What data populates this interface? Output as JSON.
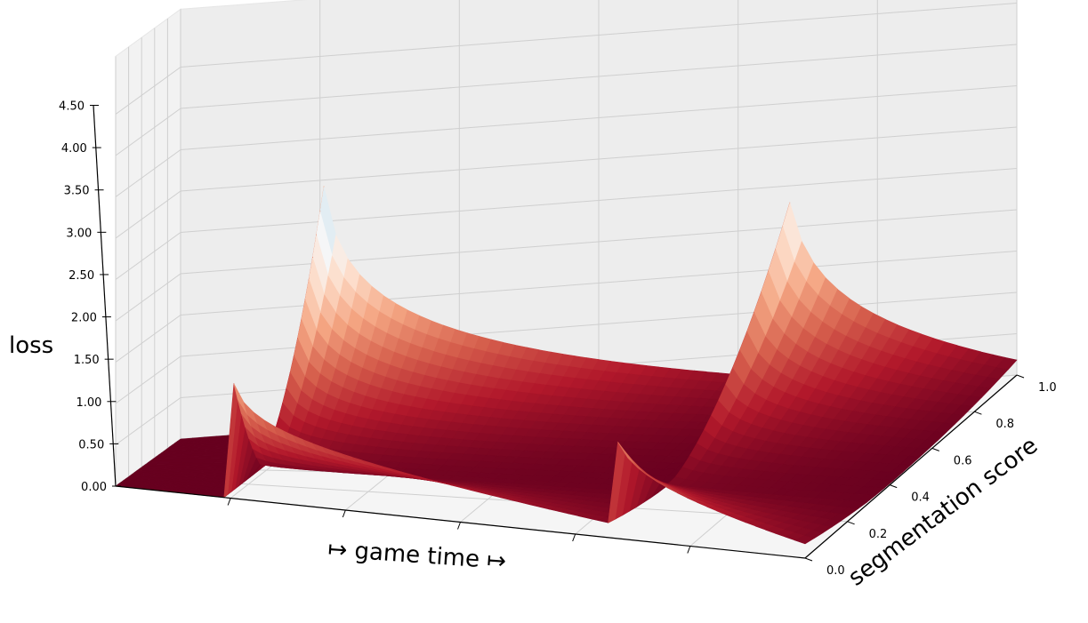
{
  "chart_data": {
    "type": "surface3d",
    "zlabel": "loss",
    "xlabel": "↦ game time ↦",
    "ylabel": "segmentation score",
    "z_ticks": [
      "0.00",
      "0.50",
      "1.00",
      "1.50",
      "2.00",
      "2.50",
      "3.00",
      "3.50",
      "4.00",
      "4.50"
    ],
    "y_ticks": [
      "0.0",
      "0.2",
      "0.4",
      "0.6",
      "0.8",
      "1.0"
    ],
    "zlim": [
      0,
      4.5
    ],
    "ylim": [
      0,
      1
    ],
    "colormap": "RdBu",
    "colormap_stops": [
      "#67001f",
      "#b2182b",
      "#d6604d",
      "#f4a582",
      "#fddbc7",
      "#f7f7f7",
      "#d1e5f0",
      "#92c5de",
      "#4393c3",
      "#2166ac",
      "#053061"
    ],
    "grid": true,
    "segments": [
      {
        "x_start": 0.0,
        "x_end": 0.17,
        "peak_loss": 0
      },
      {
        "x_start": 0.17,
        "x_end": 0.72,
        "peak_loss": 4.3
      },
      {
        "x_start": 0.72,
        "x_end": 1.0,
        "peak_loss": 4.5
      }
    ]
  }
}
